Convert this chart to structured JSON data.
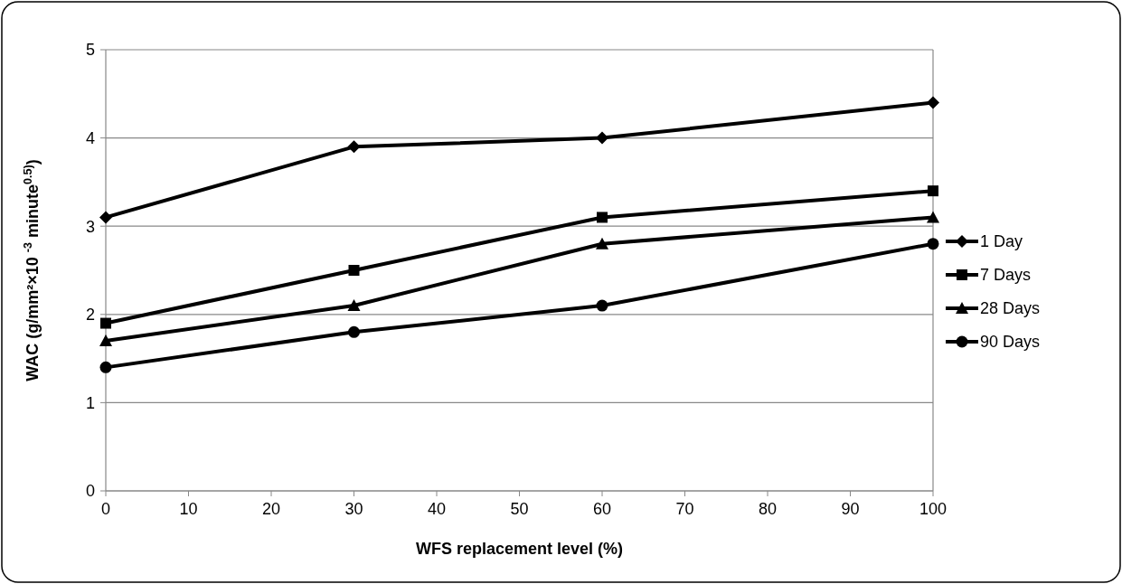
{
  "chart_data": {
    "type": "line",
    "xlabel": "WFS replacement level (%)",
    "ylabel": "WAC (g/mm²×10 $^{-3}$ minute$^{0.5)}$)",
    "x": [
      0,
      30,
      60,
      100
    ],
    "series": [
      {
        "name": "1 Day",
        "color": "#000000",
        "marker": "diamond",
        "values": [
          3.1,
          3.9,
          4.0,
          4.4
        ]
      },
      {
        "name": "7 Days",
        "color": "#000000",
        "marker": "square",
        "values": [
          1.9,
          2.5,
          3.1,
          3.4
        ]
      },
      {
        "name": "28 Days",
        "color": "#000000",
        "marker": "triangle",
        "values": [
          1.7,
          2.1,
          2.8,
          3.1
        ]
      },
      {
        "name": "90 Days",
        "color": "#000000",
        "marker": "circle",
        "values": [
          1.4,
          1.8,
          2.1,
          2.8
        ]
      }
    ],
    "xlim": [
      0,
      100
    ],
    "xticks": [
      0,
      10,
      20,
      30,
      40,
      50,
      60,
      70,
      80,
      90,
      100
    ],
    "ylim": [
      0,
      5
    ],
    "yticks": [
      0,
      1,
      2,
      3,
      4,
      5
    ],
    "grid": "y",
    "legend": "right",
    "line_style": "solid"
  }
}
